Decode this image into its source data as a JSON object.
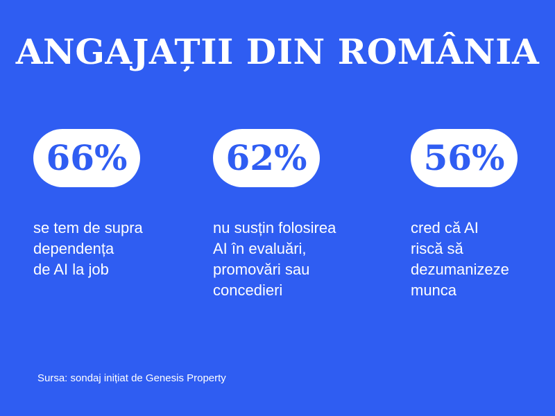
{
  "title": "ANGAJAȚII DIN ROMÂNIA",
  "stats": [
    {
      "value": "66%",
      "lines": [
        "se tem de supra",
        "dependența",
        "de AI la job"
      ]
    },
    {
      "value": "62%",
      "lines": [
        "nu susțin folosirea",
        "AI în evaluări,",
        "promovări sau",
        "concedieri"
      ]
    },
    {
      "value": "56%",
      "lines": [
        "cred că AI",
        "riscă să",
        "dezumanizeze",
        "munca"
      ]
    }
  ],
  "source": "Sursa: sondaj inițiat de Genesis Property",
  "colors": {
    "background": "#2f5df2",
    "pill": "#ffffff",
    "text": "#ffffff"
  }
}
